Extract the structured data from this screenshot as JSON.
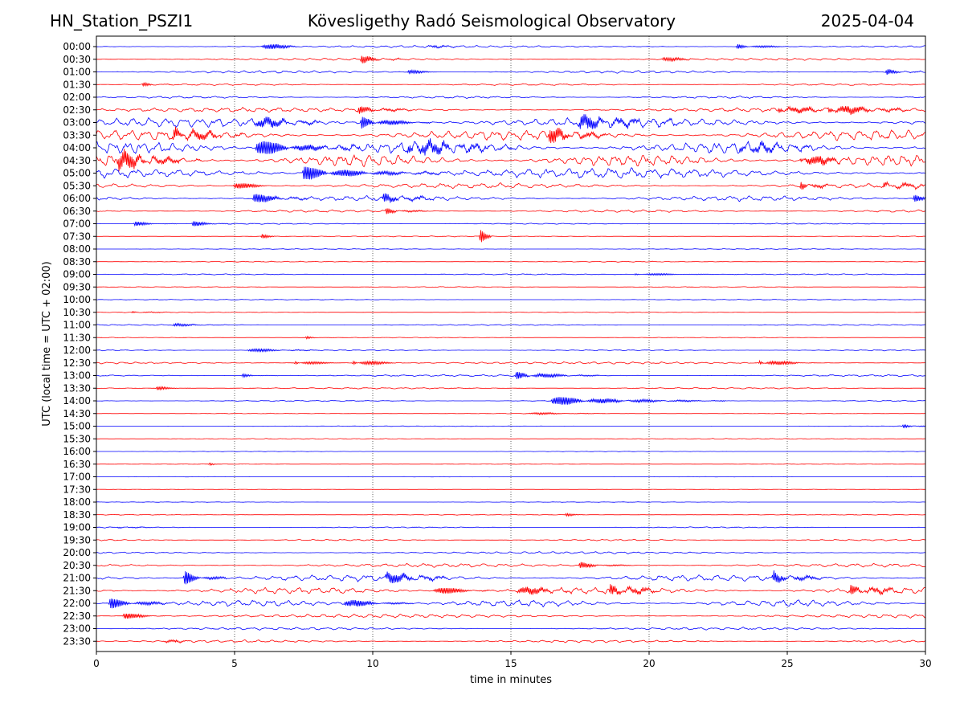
{
  "header": {
    "station": "HN_Station_PSZI1",
    "observatory": "Kövesligethy Radó Seismological Observatory",
    "date": "2025-04-04"
  },
  "chart_data": {
    "type": "line",
    "title": "Kövesligethy Radó Seismological Observatory",
    "xlabel": "time in minutes",
    "ylabel": "UTC (local time = UTC + 02:00)",
    "xlim": [
      0,
      30
    ],
    "x_ticks": [
      0,
      5,
      10,
      15,
      20,
      25,
      30
    ],
    "x_tick_labels": [
      "0",
      "5",
      "10",
      "15",
      "20",
      "25",
      "30"
    ],
    "grid": "vertical dotted lines at 5-minute intervals",
    "legend": "none",
    "colors": {
      "even_rows": "#0000ff",
      "odd_rows": "#ff0000",
      "grid": "#000000"
    },
    "rows": [
      {
        "label": "00:00",
        "activity": 0.3,
        "events": [
          {
            "t": 6.0,
            "amp": 1.4,
            "dur": 0.6
          },
          {
            "t": 23.2,
            "amp": 0.8,
            "dur": 0.8
          },
          {
            "t": 12.0,
            "amp": 0.6,
            "dur": 0.4
          }
        ]
      },
      {
        "label": "00:30",
        "activity": 0.3,
        "events": [
          {
            "t": 9.6,
            "amp": 1.0,
            "dur": 0.6
          },
          {
            "t": 20.5,
            "amp": 0.7,
            "dur": 0.6
          }
        ]
      },
      {
        "label": "01:00",
        "activity": 0.35,
        "events": [
          {
            "t": 28.6,
            "amp": 0.8,
            "dur": 0.5
          },
          {
            "t": 11.3,
            "amp": 0.6,
            "dur": 0.5
          }
        ]
      },
      {
        "label": "01:30",
        "activity": 0.25,
        "events": [
          {
            "t": 1.7,
            "amp": 0.6,
            "dur": 0.4
          }
        ]
      },
      {
        "label": "02:00",
        "activity": 0.3,
        "events": []
      },
      {
        "label": "02:30",
        "activity": 0.6,
        "events": [
          {
            "t": 24.7,
            "amp": 1.6,
            "dur": 0.8
          },
          {
            "t": 26.5,
            "amp": 1.6,
            "dur": 1.2
          },
          {
            "t": 9.5,
            "amp": 1.0,
            "dur": 0.8
          }
        ]
      },
      {
        "label": "03:00",
        "activity": 1.3,
        "events": [
          {
            "t": 5.6,
            "amp": 1.8,
            "dur": 1.0
          },
          {
            "t": 9.6,
            "amp": 1.8,
            "dur": 1.0
          },
          {
            "t": 17.5,
            "amp": 1.6,
            "dur": 1.5
          }
        ]
      },
      {
        "label": "03:30",
        "activity": 1.4,
        "events": [
          {
            "t": 2.8,
            "amp": 2.0,
            "dur": 1.0
          },
          {
            "t": 16.4,
            "amp": 1.8,
            "dur": 1.0
          }
        ]
      },
      {
        "label": "04:00",
        "activity": 1.6,
        "events": [
          {
            "t": 5.8,
            "amp": 2.2,
            "dur": 1.5
          },
          {
            "t": 11.3,
            "amp": 2.0,
            "dur": 1.5
          },
          {
            "t": 23.3,
            "amp": 1.6,
            "dur": 1.0
          }
        ]
      },
      {
        "label": "04:30",
        "activity": 1.6,
        "events": [
          {
            "t": 0.8,
            "amp": 2.2,
            "dur": 1.2
          },
          {
            "t": 25.5,
            "amp": 2.2,
            "dur": 0.8
          }
        ]
      },
      {
        "label": "05:00",
        "activity": 1.4,
        "events": [
          {
            "t": 7.5,
            "amp": 1.8,
            "dur": 2.0
          }
        ]
      },
      {
        "label": "05:30",
        "activity": 0.7,
        "events": [
          {
            "t": 25.5,
            "amp": 2.0,
            "dur": 0.4
          },
          {
            "t": 5.0,
            "amp": 1.2,
            "dur": 0.6
          },
          {
            "t": 28.5,
            "amp": 1.2,
            "dur": 0.6
          }
        ]
      },
      {
        "label": "06:00",
        "activity": 0.7,
        "events": [
          {
            "t": 5.7,
            "amp": 1.4,
            "dur": 0.8
          },
          {
            "t": 10.4,
            "amp": 1.2,
            "dur": 0.8
          },
          {
            "t": 29.6,
            "amp": 1.0,
            "dur": 0.5
          }
        ]
      },
      {
        "label": "06:30",
        "activity": 0.35,
        "events": [
          {
            "t": 10.5,
            "amp": 1.0,
            "dur": 0.6
          }
        ]
      },
      {
        "label": "07:00",
        "activity": 0.15,
        "events": [
          {
            "t": 1.4,
            "amp": 0.6,
            "dur": 0.6
          },
          {
            "t": 3.5,
            "amp": 0.7,
            "dur": 0.6
          }
        ]
      },
      {
        "label": "07:30",
        "activity": 0.12,
        "events": [
          {
            "t": 13.9,
            "amp": 3.0,
            "dur": 0.15
          },
          {
            "t": 6.0,
            "amp": 0.6,
            "dur": 0.3
          }
        ]
      },
      {
        "label": "08:00",
        "activity": 0.1,
        "events": []
      },
      {
        "label": "08:30",
        "activity": 0.12,
        "events": []
      },
      {
        "label": "09:00",
        "activity": 0.15,
        "events": [
          {
            "t": 19.5,
            "amp": 0.4,
            "dur": 1.5
          }
        ]
      },
      {
        "label": "09:30",
        "activity": 0.1,
        "events": []
      },
      {
        "label": "10:00",
        "activity": 0.1,
        "events": []
      },
      {
        "label": "10:30",
        "activity": 0.1,
        "events": [
          {
            "t": 1.3,
            "amp": 0.4,
            "dur": 0.6
          }
        ]
      },
      {
        "label": "11:00",
        "activity": 0.15,
        "events": [
          {
            "t": 2.8,
            "amp": 0.4,
            "dur": 0.8
          }
        ]
      },
      {
        "label": "11:30",
        "activity": 0.1,
        "events": [
          {
            "t": 7.6,
            "amp": 0.4,
            "dur": 0.4
          }
        ]
      },
      {
        "label": "12:00",
        "activity": 0.15,
        "events": [
          {
            "t": 5.5,
            "amp": 0.5,
            "dur": 1.2
          }
        ]
      },
      {
        "label": "12:30",
        "activity": 0.3,
        "events": [
          {
            "t": 7.2,
            "amp": 1.0,
            "dur": 0.6
          },
          {
            "t": 9.3,
            "amp": 1.2,
            "dur": 0.7
          },
          {
            "t": 24.0,
            "amp": 1.2,
            "dur": 0.8
          }
        ]
      },
      {
        "label": "13:00",
        "activity": 0.25,
        "events": [
          {
            "t": 15.2,
            "amp": 1.2,
            "dur": 1.2
          },
          {
            "t": 5.3,
            "amp": 0.5,
            "dur": 0.5
          }
        ]
      },
      {
        "label": "13:30",
        "activity": 0.2,
        "events": [
          {
            "t": 2.2,
            "amp": 0.5,
            "dur": 0.5
          }
        ]
      },
      {
        "label": "14:00",
        "activity": 0.15,
        "events": [
          {
            "t": 16.5,
            "amp": 1.2,
            "dur": 2.5
          }
        ]
      },
      {
        "label": "14:30",
        "activity": 0.08,
        "events": [
          {
            "t": 15.5,
            "amp": 0.4,
            "dur": 1.2
          }
        ]
      },
      {
        "label": "15:00",
        "activity": 0.08,
        "events": [
          {
            "t": 29.2,
            "amp": 0.6,
            "dur": 0.6
          }
        ]
      },
      {
        "label": "15:30",
        "activity": 0.1,
        "events": []
      },
      {
        "label": "16:00",
        "activity": 0.06,
        "events": []
      },
      {
        "label": "16:30",
        "activity": 0.06,
        "events": [
          {
            "t": 4.1,
            "amp": 0.4,
            "dur": 0.2
          }
        ]
      },
      {
        "label": "17:00",
        "activity": 0.05,
        "events": []
      },
      {
        "label": "17:30",
        "activity": 0.05,
        "events": []
      },
      {
        "label": "18:00",
        "activity": 0.06,
        "events": []
      },
      {
        "label": "18:30",
        "activity": 0.1,
        "events": [
          {
            "t": 17.0,
            "amp": 0.4,
            "dur": 0.3
          }
        ]
      },
      {
        "label": "19:00",
        "activity": 0.15,
        "events": [
          {
            "t": 0.8,
            "amp": 0.4,
            "dur": 0.5
          }
        ]
      },
      {
        "label": "19:30",
        "activity": 0.2,
        "events": []
      },
      {
        "label": "20:00",
        "activity": 0.3,
        "events": []
      },
      {
        "label": "20:30",
        "activity": 0.5,
        "events": [
          {
            "t": 17.5,
            "amp": 0.8,
            "dur": 0.8
          }
        ]
      },
      {
        "label": "21:00",
        "activity": 0.9,
        "events": [
          {
            "t": 3.2,
            "amp": 2.0,
            "dur": 0.6
          },
          {
            "t": 10.5,
            "amp": 1.4,
            "dur": 1.0
          },
          {
            "t": 24.5,
            "amp": 1.4,
            "dur": 0.8
          }
        ]
      },
      {
        "label": "21:30",
        "activity": 0.9,
        "events": [
          {
            "t": 12.2,
            "amp": 1.5,
            "dur": 0.8
          },
          {
            "t": 15.2,
            "amp": 1.6,
            "dur": 0.8
          },
          {
            "t": 18.6,
            "amp": 1.8,
            "dur": 0.8
          },
          {
            "t": 27.3,
            "amp": 1.6,
            "dur": 0.8
          }
        ]
      },
      {
        "label": "22:00",
        "activity": 0.9,
        "events": [
          {
            "t": 0.5,
            "amp": 1.4,
            "dur": 1.0
          },
          {
            "t": 9.0,
            "amp": 1.2,
            "dur": 1.0
          }
        ]
      },
      {
        "label": "22:30",
        "activity": 0.5,
        "events": [
          {
            "t": 1.0,
            "amp": 1.0,
            "dur": 0.6
          }
        ]
      },
      {
        "label": "23:00",
        "activity": 0.35,
        "events": []
      },
      {
        "label": "23:30",
        "activity": 0.35,
        "events": [
          {
            "t": 2.5,
            "amp": 0.6,
            "dur": 0.4
          }
        ]
      }
    ]
  }
}
